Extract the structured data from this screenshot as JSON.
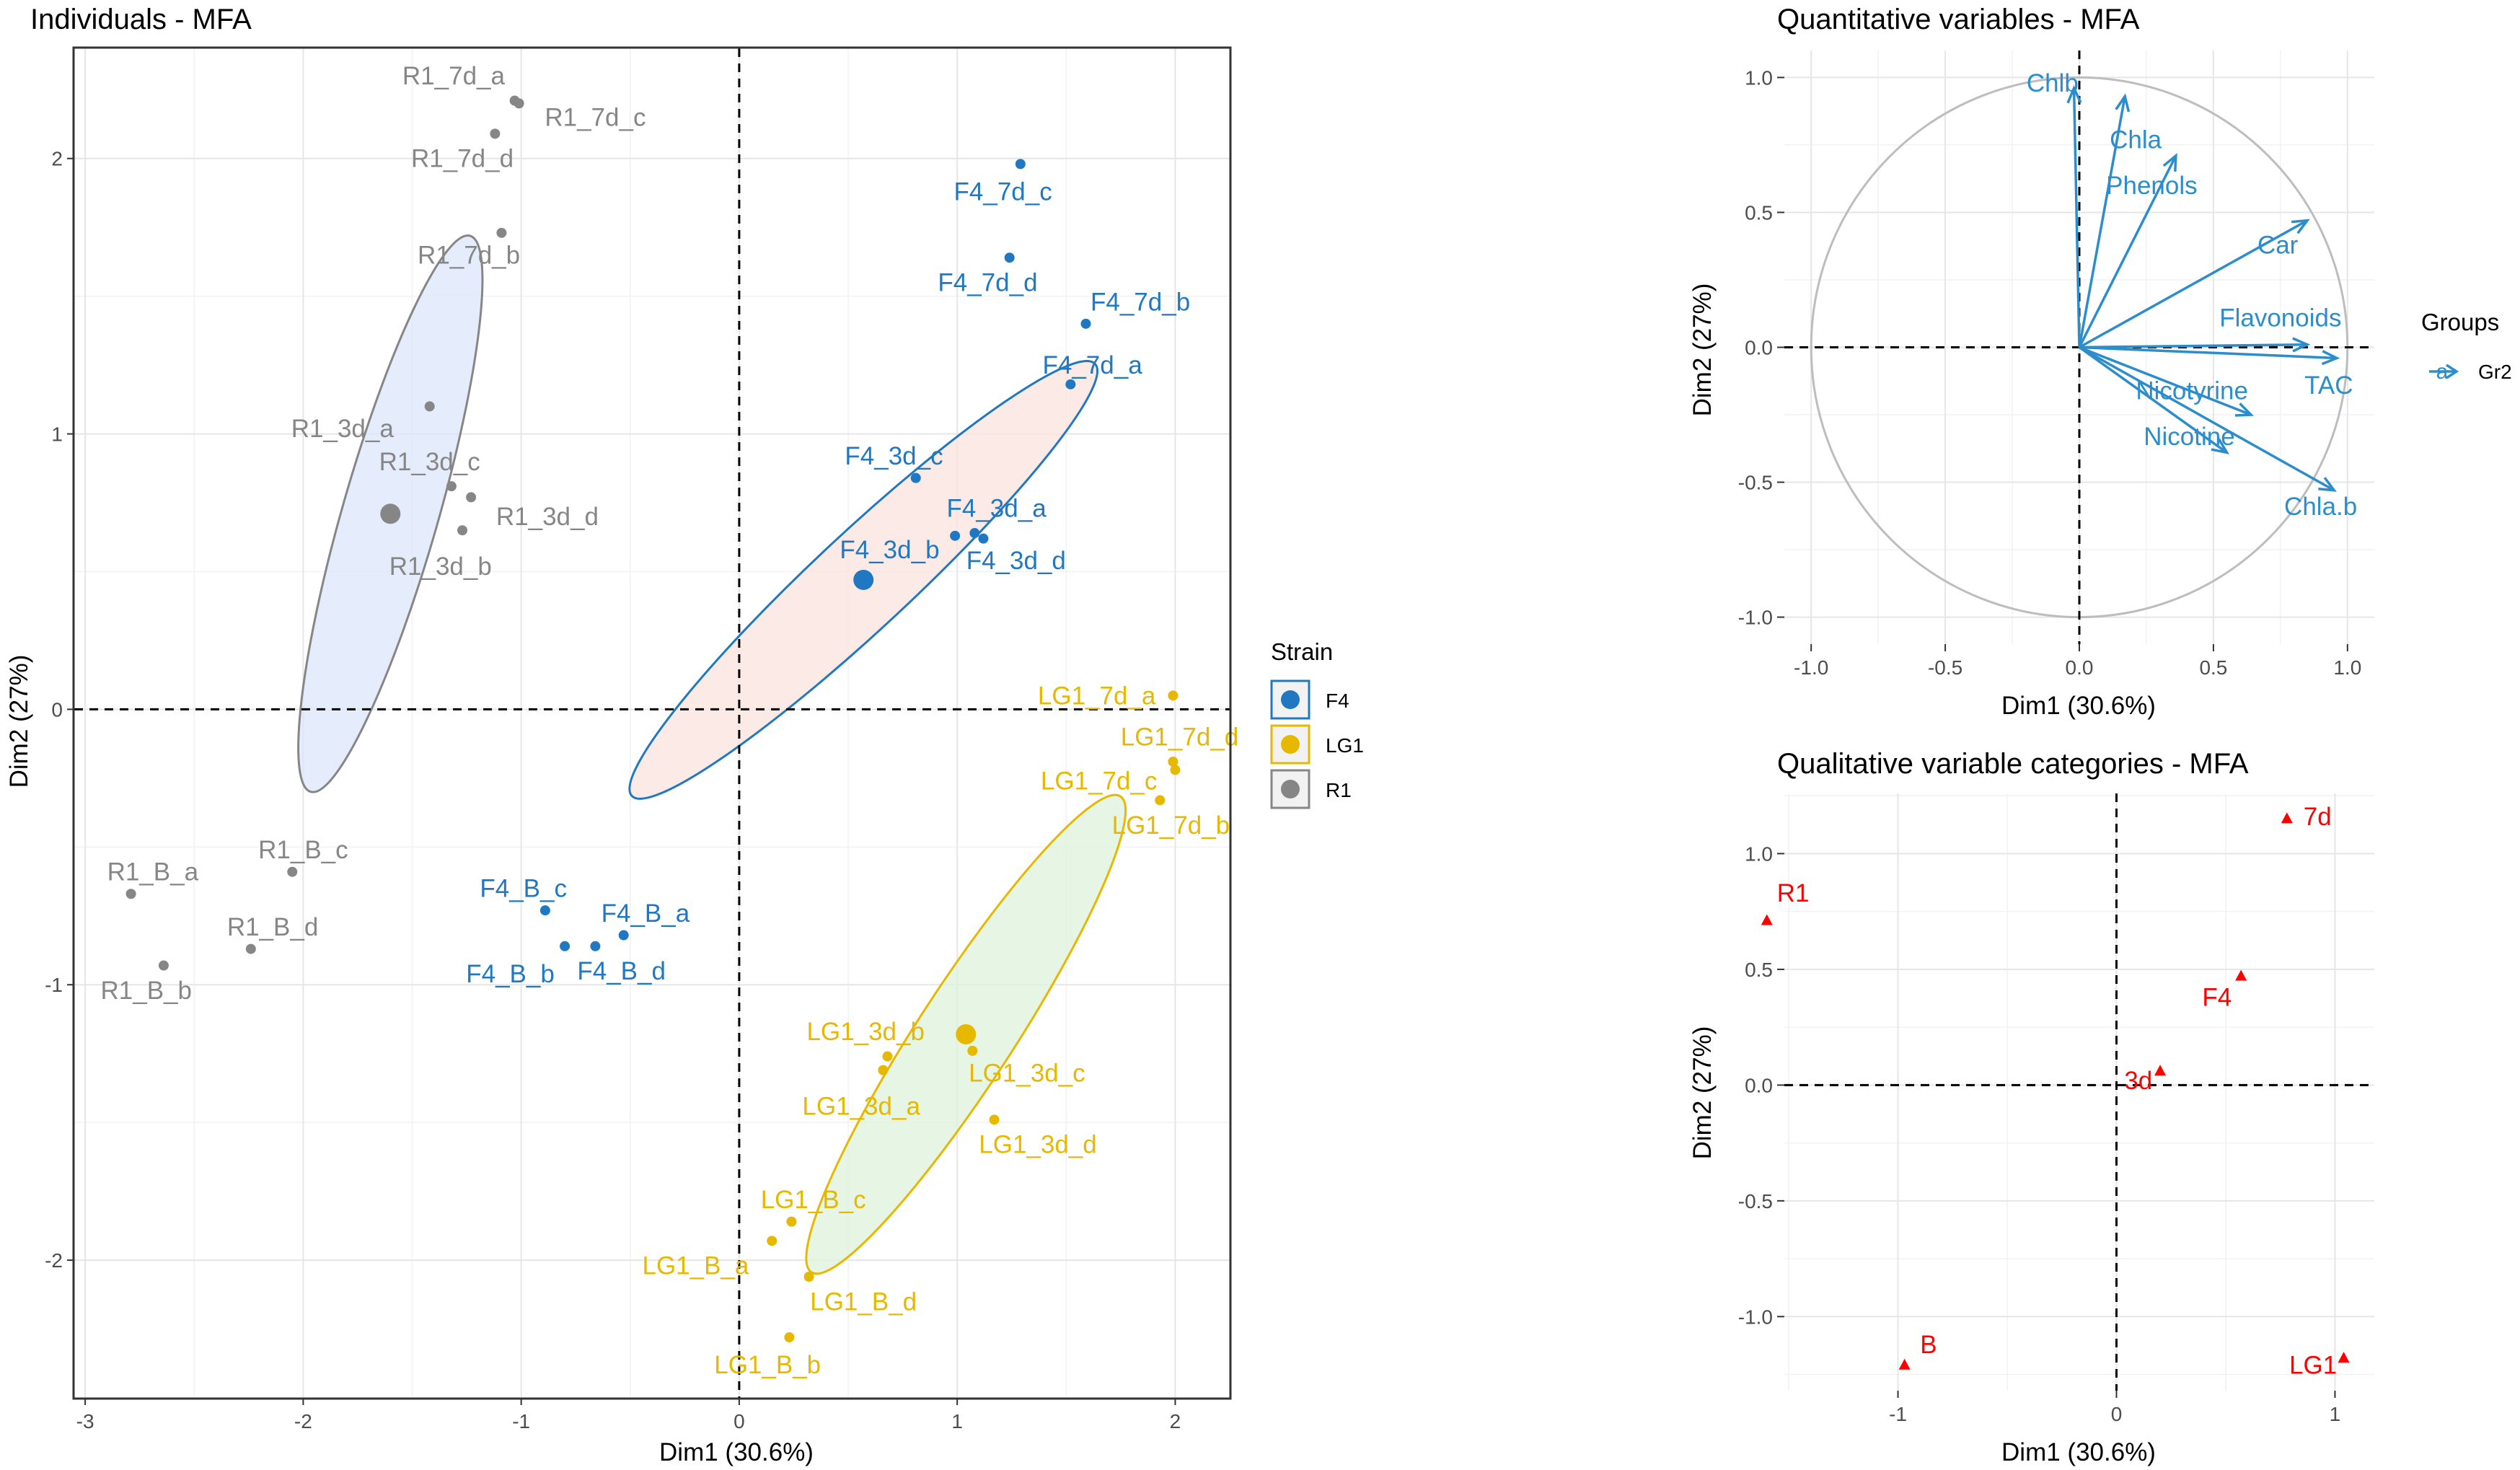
{
  "colors": {
    "F4": "#1f78c1",
    "LG1": "#e7b800",
    "R1": "#868686",
    "quanti": "#2c8dcc",
    "quali": "#ff0000"
  },
  "chart_data": [
    {
      "type": "scatter",
      "title": "Individuals - MFA",
      "xlabel": "Dim1 (30.6%)",
      "ylabel": "Dim2 (27%)",
      "xlim": [
        -3.05,
        2.25
      ],
      "ylim": [
        -2.5,
        2.4
      ],
      "xticks": [
        -3,
        -2,
        -1,
        0,
        1,
        2
      ],
      "yticks": [
        -2,
        -1,
        0,
        1,
        2
      ],
      "legend": {
        "title": "Strain",
        "entries": [
          "F4",
          "LG1",
          "R1"
        ],
        "position": "right"
      },
      "points": [
        {
          "label": "R1_7d_a",
          "x": -1.03,
          "y": 2.21,
          "group": "R1",
          "ldx": -0.28,
          "ldy": 0.09
        },
        {
          "label": "R1_7d_c",
          "x": -1.01,
          "y": 2.2,
          "group": "R1",
          "ldx": 0.35,
          "ldy": -0.05
        },
        {
          "label": "R1_7d_d",
          "x": -1.12,
          "y": 2.09,
          "group": "R1",
          "ldx": -0.15,
          "ldy": -0.09
        },
        {
          "label": "R1_7d_b",
          "x": -1.09,
          "y": 1.73,
          "group": "R1",
          "ldx": -0.15,
          "ldy": -0.08
        },
        {
          "label": "R1_3d_a",
          "x": -1.42,
          "y": 1.1,
          "group": "R1",
          "ldx": -0.4,
          "ldy": -0.08
        },
        {
          "label": "R1_3d_c",
          "x": -1.32,
          "y": 0.81,
          "group": "R1",
          "ldx": -0.1,
          "ldy": 0.09
        },
        {
          "label": "R1_3d_d",
          "x": -1.23,
          "y": 0.77,
          "group": "R1",
          "ldx": 0.35,
          "ldy": -0.07
        },
        {
          "label": "R1_3d_b",
          "x": -1.27,
          "y": 0.65,
          "group": "R1",
          "ldx": -0.1,
          "ldy": -0.13
        },
        {
          "label": "R1_B_c",
          "x": -2.05,
          "y": -0.59,
          "group": "R1",
          "ldx": 0.05,
          "ldy": 0.08
        },
        {
          "label": "R1_B_a",
          "x": -2.79,
          "y": -0.67,
          "group": "R1",
          "ldx": 0.1,
          "ldy": 0.08
        },
        {
          "label": "R1_B_d",
          "x": -2.24,
          "y": -0.87,
          "group": "R1",
          "ldx": 0.1,
          "ldy": 0.08
        },
        {
          "label": "R1_B_b",
          "x": -2.64,
          "y": -0.93,
          "group": "R1",
          "ldx": -0.08,
          "ldy": -0.09
        },
        {
          "label": "F4_7d_c",
          "x": 1.29,
          "y": 1.98,
          "group": "F4",
          "ldx": -0.08,
          "ldy": -0.1
        },
        {
          "label": "F4_7d_d",
          "x": 1.24,
          "y": 1.64,
          "group": "F4",
          "ldx": -0.1,
          "ldy": -0.09
        },
        {
          "label": "F4_7d_b",
          "x": 1.59,
          "y": 1.4,
          "group": "F4",
          "ldx": 0.25,
          "ldy": 0.08
        },
        {
          "label": "F4_7d_a",
          "x": 1.52,
          "y": 1.18,
          "group": "F4",
          "ldx": 0.1,
          "ldy": 0.07
        },
        {
          "label": "F4_3d_c",
          "x": 0.81,
          "y": 0.84,
          "group": "F4",
          "ldx": -0.1,
          "ldy": 0.08
        },
        {
          "label": "F4_3d_a",
          "x": 1.08,
          "y": 0.64,
          "group": "F4",
          "ldx": 0.1,
          "ldy": 0.09
        },
        {
          "label": "F4_3d_d",
          "x": 1.12,
          "y": 0.62,
          "group": "F4",
          "ldx": 0.15,
          "ldy": -0.08
        },
        {
          "label": "F4_3d_b",
          "x": 0.99,
          "y": 0.63,
          "group": "F4",
          "ldx": -0.3,
          "ldy": -0.05
        },
        {
          "label": "F4_B_c",
          "x": -0.89,
          "y": -0.73,
          "group": "F4",
          "ldx": -0.1,
          "ldy": 0.08
        },
        {
          "label": "F4_B_a",
          "x": -0.53,
          "y": -0.82,
          "group": "F4",
          "ldx": 0.1,
          "ldy": 0.08
        },
        {
          "label": "F4_B_d",
          "x": -0.66,
          "y": -0.86,
          "group": "F4",
          "ldx": 0.12,
          "ldy": -0.09
        },
        {
          "label": "F4_B_b",
          "x": -0.8,
          "y": -0.86,
          "group": "F4",
          "ldx": -0.25,
          "ldy": -0.1
        },
        {
          "label": "LG1_7d_a",
          "x": 1.99,
          "y": 0.05,
          "group": "LG1",
          "ldx": -0.35,
          "ldy": 0.0
        },
        {
          "label": "LG1_7d_d",
          "x": 1.99,
          "y": -0.19,
          "group": "LG1",
          "ldx": 0.03,
          "ldy": 0.09
        },
        {
          "label": "LG1_7d_c",
          "x": 2.0,
          "y": -0.22,
          "group": "LG1",
          "ldx": -0.35,
          "ldy": -0.04
        },
        {
          "label": "LG1_7d_b",
          "x": 1.93,
          "y": -0.33,
          "group": "LG1",
          "ldx": 0.05,
          "ldy": -0.09
        },
        {
          "label": "LG1_3d_b",
          "x": 0.68,
          "y": -1.26,
          "group": "LG1",
          "ldx": -0.1,
          "ldy": 0.09
        },
        {
          "label": "LG1_3d_c",
          "x": 1.07,
          "y": -1.24,
          "group": "LG1",
          "ldx": 0.25,
          "ldy": -0.08
        },
        {
          "label": "LG1_3d_a",
          "x": 0.66,
          "y": -1.31,
          "group": "LG1",
          "ldx": -0.1,
          "ldy": -0.13
        },
        {
          "label": "LG1_3d_d",
          "x": 1.17,
          "y": -1.49,
          "group": "LG1",
          "ldx": 0.2,
          "ldy": -0.09
        },
        {
          "label": "LG1_B_c",
          "x": 0.24,
          "y": -1.86,
          "group": "LG1",
          "ldx": 0.1,
          "ldy": 0.08
        },
        {
          "label": "LG1_B_a",
          "x": 0.15,
          "y": -1.93,
          "group": "LG1",
          "ldx": -0.35,
          "ldy": -0.09
        },
        {
          "label": "LG1_B_d",
          "x": 0.32,
          "y": -2.06,
          "group": "LG1",
          "ldx": 0.25,
          "ldy": -0.09
        },
        {
          "label": "LG1_B_b",
          "x": 0.23,
          "y": -2.28,
          "group": "LG1",
          "ldx": -0.1,
          "ldy": -0.1
        }
      ],
      "centroids": [
        {
          "group": "R1",
          "x": -1.6,
          "y": 0.71
        },
        {
          "group": "F4",
          "x": 0.57,
          "y": 0.47
        },
        {
          "group": "LG1",
          "x": 1.04,
          "y": -1.18
        }
      ],
      "ellipses": [
        {
          "group": "R1",
          "cx": -1.6,
          "cy": 0.71,
          "rx": 0.22,
          "ry": 1.05,
          "rotate_deg": 16,
          "fill": "#dce6fa"
        },
        {
          "group": "F4",
          "cx": 0.57,
          "cy": 0.47,
          "rx": 0.22,
          "ry": 1.15,
          "rotate_deg": 47,
          "fill": "#fbe3de"
        },
        {
          "group": "LG1",
          "cx": 1.04,
          "cy": -1.18,
          "rx": 0.22,
          "ry": 1.03,
          "rotate_deg": 33,
          "fill": "#dff1dc"
        }
      ]
    },
    {
      "type": "vector",
      "title": "Quantitative variables - MFA",
      "xlabel": "Dim1 (30.6%)",
      "ylabel": "Dim2 (27%)",
      "xlim": [
        -1.1,
        1.1
      ],
      "ylim": [
        -1.1,
        1.1
      ],
      "xticks": [
        -1.0,
        -0.5,
        0.0,
        0.5,
        1.0
      ],
      "yticks": [
        -1.0,
        -0.5,
        0.0,
        0.5,
        1.0
      ],
      "legend": {
        "title": "Groups",
        "entries": [
          "Gr2"
        ],
        "symbol": "a",
        "position": "right"
      },
      "arrows": [
        {
          "label": "Chlb",
          "x": -0.02,
          "y": 0.96,
          "ldx": -0.08,
          "ldy": 0.02
        },
        {
          "label": "Chla",
          "x": 0.17,
          "y": 0.93,
          "ldx": 0.04,
          "ldy": -0.16
        },
        {
          "label": "Phenols",
          "x": 0.36,
          "y": 0.71,
          "ldx": -0.09,
          "ldy": -0.11
        },
        {
          "label": "Car",
          "x": 0.85,
          "y": 0.47,
          "ldx": -0.11,
          "ldy": -0.09
        },
        {
          "label": "Flavonoids",
          "x": 0.85,
          "y": 0.01,
          "ldx": -0.1,
          "ldy": 0.1
        },
        {
          "label": "TAC",
          "x": 0.96,
          "y": -0.04,
          "ldx": -0.03,
          "ldy": -0.1
        },
        {
          "label": "Nicotyrine",
          "x": 0.64,
          "y": -0.25,
          "ldx": -0.22,
          "ldy": 0.09
        },
        {
          "label": "Nicotine",
          "x": 0.55,
          "y": -0.39,
          "ldx": -0.14,
          "ldy": 0.06
        },
        {
          "label": "Chla.b",
          "x": 0.95,
          "y": -0.53,
          "ldx": -0.05,
          "ldy": -0.06
        }
      ]
    },
    {
      "type": "scatter",
      "title": "Qualitative variable categories - MFA",
      "xlabel": "Dim1 (30.6%)",
      "ylabel": "Dim2 (27%)",
      "xlim": [
        -1.52,
        1.18
      ],
      "ylim": [
        -1.32,
        1.26
      ],
      "xticks": [
        -1,
        0,
        1
      ],
      "yticks": [
        -1.0,
        -0.5,
        0.0,
        0.5,
        1.0
      ],
      "points": [
        {
          "label": "7d",
          "x": 0.78,
          "y": 1.15,
          "ldx": 0.14,
          "ldy": 0.01
        },
        {
          "label": "R1",
          "x": -1.6,
          "y": 0.71,
          "ldx": 0.12,
          "ldy": 0.12
        },
        {
          "label": "F4",
          "x": 0.57,
          "y": 0.47,
          "ldx": -0.11,
          "ldy": -0.09
        },
        {
          "label": "3d",
          "x": 0.2,
          "y": 0.06,
          "ldx": -0.1,
          "ldy": -0.04
        },
        {
          "label": "B",
          "x": -0.97,
          "y": -1.21,
          "ldx": 0.11,
          "ldy": 0.09
        },
        {
          "label": "LG1",
          "x": 1.04,
          "y": -1.18,
          "ldx": -0.14,
          "ldy": -0.03
        }
      ]
    }
  ]
}
